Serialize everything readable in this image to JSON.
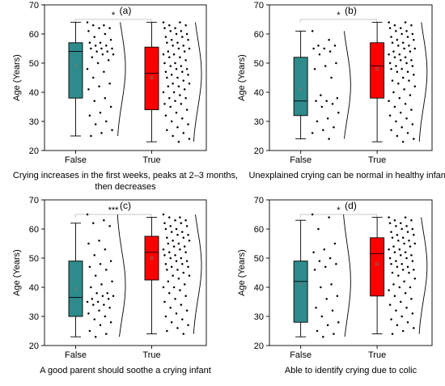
{
  "colors": {
    "false_box": "#2e8b8b",
    "true_box": "#ff0000",
    "frame": "#000000",
    "dot": "#000000",
    "bracket": "#c8c8c8",
    "mean_marker": "#7a7a7a"
  },
  "chart_data": [
    {
      "type": "box",
      "panel_label": "(a)",
      "xlabel": "Crying increases in the first weeks, peaks at 2–3 months, then decreases",
      "ylabel": "Age (Years)",
      "ylim": [
        20,
        70
      ],
      "yticks": [
        20,
        30,
        40,
        50,
        60,
        70
      ],
      "categories": [
        "False",
        "True"
      ],
      "boxes": [
        {
          "category": "False",
          "whisker_low": 25,
          "q1": 38,
          "median": 54,
          "q3": 57,
          "whisker_high": 64,
          "mean": 49,
          "points": [
            64,
            63,
            63,
            62,
            62,
            61,
            60,
            59,
            58,
            57,
            57,
            56,
            56,
            55,
            55,
            55,
            54,
            54,
            53,
            53,
            52,
            51,
            50,
            48,
            47,
            45,
            43,
            42,
            41,
            38,
            37,
            35,
            33,
            32,
            30,
            29,
            27,
            26,
            25
          ]
        },
        {
          "category": "True",
          "whisker_low": 23,
          "q1": 34,
          "median": 46.5,
          "q3": 55.5,
          "whisker_high": 64,
          "mean": 45,
          "points": [
            64,
            64,
            63,
            63,
            62,
            62,
            61,
            61,
            60,
            60,
            59,
            59,
            58,
            58,
            57,
            57,
            56,
            56,
            55,
            55,
            54,
            54,
            53,
            53,
            52,
            52,
            51,
            50,
            50,
            49,
            49,
            48,
            48,
            47,
            47,
            46,
            46,
            45,
            45,
            44,
            43,
            43,
            42,
            42,
            41,
            40,
            40,
            39,
            38,
            38,
            37,
            36,
            36,
            35,
            34,
            33,
            32,
            31,
            30,
            29,
            28,
            27,
            26,
            25,
            24,
            23
          ]
        }
      ],
      "significance": "*"
    },
    {
      "type": "box",
      "panel_label": "(b)",
      "xlabel": "Unexplained crying can be normal in healthy infants",
      "ylabel": "Age (Years)",
      "ylim": [
        20,
        70
      ],
      "yticks": [
        20,
        30,
        40,
        50,
        60,
        70
      ],
      "categories": [
        "False",
        "True"
      ],
      "boxes": [
        {
          "category": "False",
          "whisker_low": 24,
          "q1": 32,
          "median": 37,
          "q3": 52,
          "whisker_high": 61,
          "mean": 41,
          "points": [
            61,
            58,
            56,
            56,
            55,
            55,
            54,
            53,
            50,
            49,
            48,
            45,
            39,
            38,
            37,
            37,
            36,
            35,
            33,
            31,
            30,
            28,
            27,
            26,
            24
          ]
        },
        {
          "category": "True",
          "whisker_low": 23,
          "q1": 38,
          "median": 49,
          "q3": 57,
          "whisker_high": 64,
          "mean": 48,
          "points": [
            64,
            64,
            63,
            63,
            62,
            62,
            61,
            61,
            60,
            60,
            59,
            59,
            58,
            58,
            57,
            57,
            56,
            56,
            55,
            55,
            54,
            54,
            53,
            53,
            52,
            52,
            51,
            51,
            50,
            50,
            49,
            49,
            48,
            48,
            47,
            47,
            46,
            45,
            44,
            44,
            43,
            42,
            41,
            40,
            39,
            38,
            37,
            36,
            35,
            34,
            33,
            32,
            31,
            30,
            29,
            28,
            27,
            26,
            25,
            24,
            23
          ]
        }
      ],
      "significance": "*"
    },
    {
      "type": "box",
      "panel_label": "(c)",
      "xlabel": "A good parent should soothe a crying infant",
      "ylabel": "Age (Years)",
      "ylim": [
        20,
        70
      ],
      "yticks": [
        20,
        30,
        40,
        50,
        60,
        70
      ],
      "categories": [
        "False",
        "True"
      ],
      "boxes": [
        {
          "category": "False",
          "whisker_low": 23,
          "q1": 30,
          "median": 36.5,
          "q3": 49,
          "whisker_high": 62,
          "mean": 39.5,
          "points": [
            65,
            63,
            62,
            61,
            56,
            55,
            53,
            51,
            49,
            48,
            47,
            46,
            44,
            42,
            41,
            40,
            38,
            38,
            37,
            37,
            36,
            36,
            35,
            35,
            34,
            34,
            33,
            32,
            31,
            30,
            29,
            28,
            27,
            25,
            24,
            23
          ]
        },
        {
          "category": "True",
          "whisker_low": 24,
          "q1": 42.5,
          "median": 52,
          "q3": 57.5,
          "whisker_high": 64,
          "mean": 50,
          "points": [
            65,
            64,
            64,
            63,
            63,
            62,
            62,
            61,
            61,
            60,
            60,
            59,
            59,
            58,
            58,
            57,
            57,
            56,
            56,
            55,
            55,
            54,
            54,
            53,
            53,
            52,
            52,
            51,
            51,
            50,
            50,
            49,
            49,
            48,
            48,
            47,
            47,
            46,
            46,
            45,
            44,
            44,
            43,
            42,
            41,
            40,
            40,
            39,
            38,
            37,
            36,
            35,
            34,
            33,
            32,
            31,
            30,
            29,
            28,
            27,
            26,
            25,
            24
          ]
        }
      ],
      "significance": "***"
    },
    {
      "type": "box",
      "panel_label": "(d)",
      "xlabel": "Able to identify crying due to colic",
      "ylabel": "Age (Years)",
      "ylim": [
        20,
        70
      ],
      "yticks": [
        20,
        30,
        40,
        50,
        60,
        70
      ],
      "categories": [
        "False",
        "True"
      ],
      "boxes": [
        {
          "category": "False",
          "whisker_low": 23,
          "q1": 28,
          "median": 42,
          "q3": 49,
          "whisker_high": 63,
          "mean": 41,
          "points": [
            65,
            64,
            60,
            55,
            53,
            52,
            50,
            49,
            48,
            47,
            46,
            41,
            40,
            37,
            36,
            33,
            32,
            30,
            28,
            27,
            25,
            24,
            23
          ]
        },
        {
          "category": "True",
          "whisker_low": 24,
          "q1": 37,
          "median": 51.5,
          "q3": 57,
          "whisker_high": 64,
          "mean": 48,
          "points": [
            64,
            64,
            63,
            63,
            62,
            62,
            61,
            61,
            60,
            60,
            59,
            59,
            58,
            58,
            57,
            57,
            56,
            56,
            55,
            55,
            54,
            54,
            53,
            53,
            52,
            52,
            51,
            51,
            50,
            50,
            49,
            49,
            48,
            48,
            47,
            47,
            46,
            46,
            45,
            45,
            44,
            43,
            42,
            41,
            40,
            40,
            39,
            38,
            37,
            36,
            35,
            34,
            33,
            32,
            31,
            30,
            29,
            28,
            27,
            26,
            25,
            24
          ]
        }
      ],
      "significance": "*"
    }
  ]
}
